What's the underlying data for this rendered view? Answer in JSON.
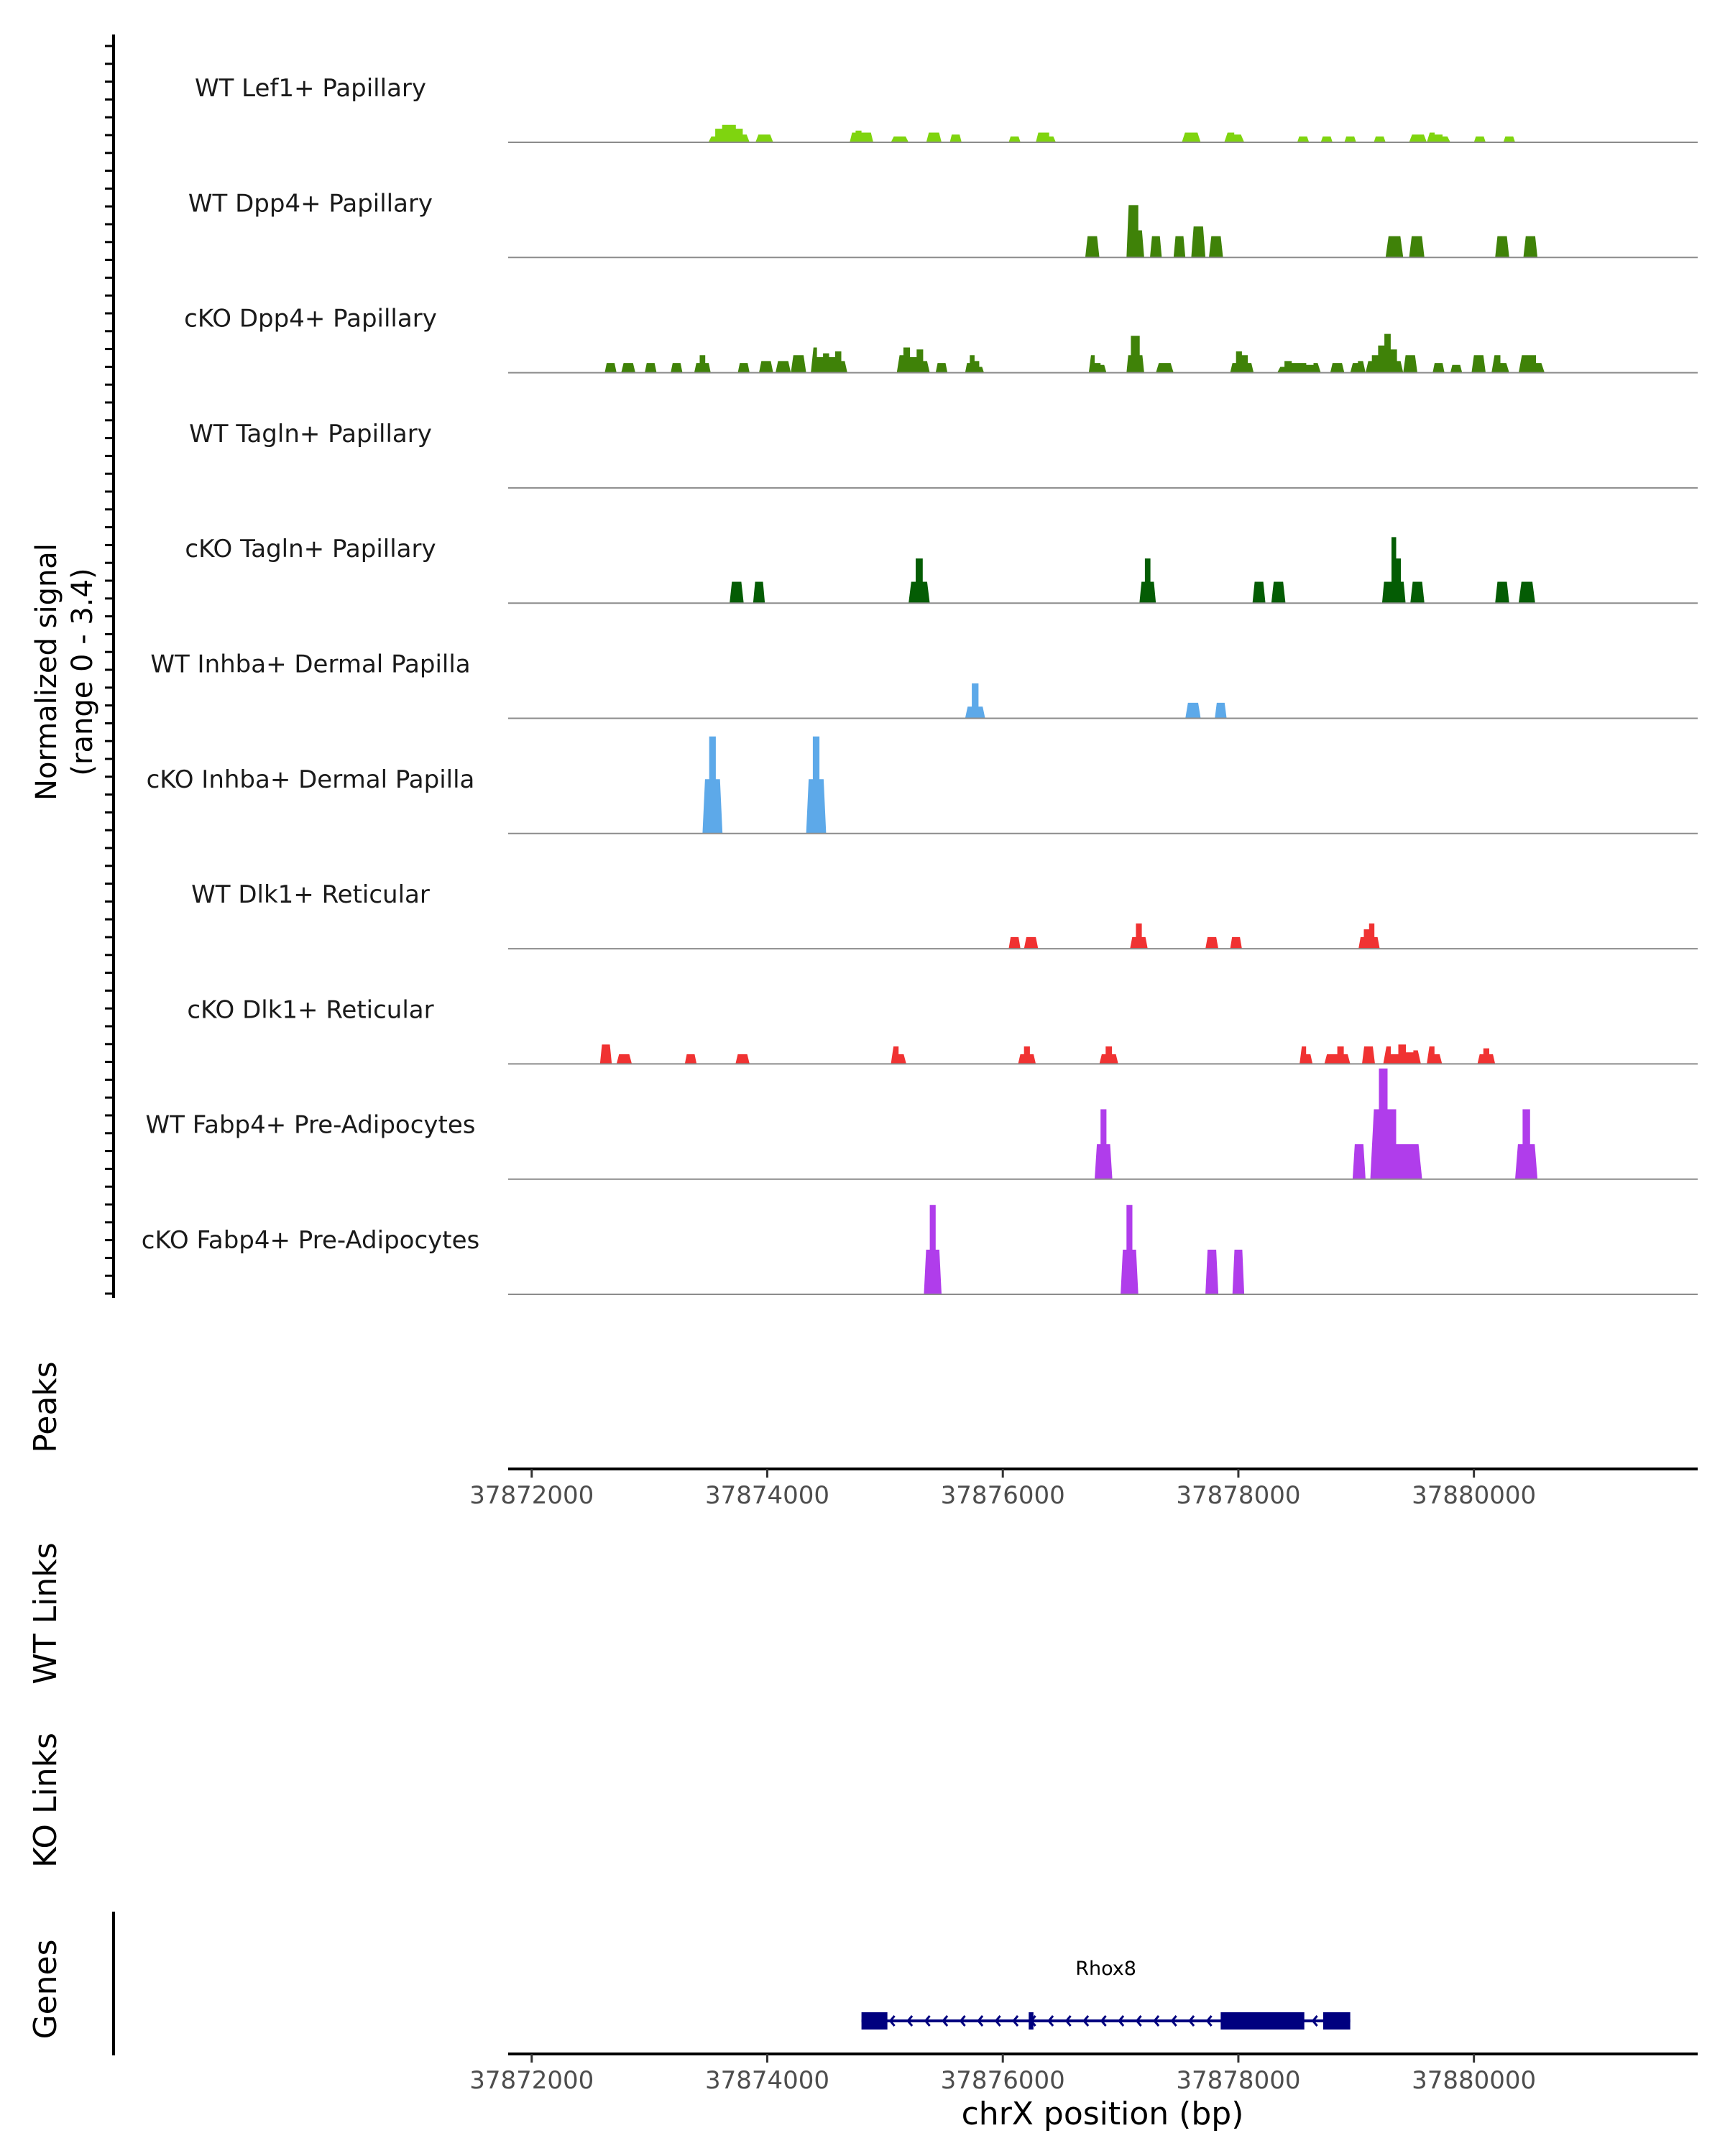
{
  "chart_data": {
    "type": "area",
    "title": "",
    "chromosome": "chrX",
    "xlabel": "chrX position (bp)",
    "xlim": [
      37871800,
      37881900
    ],
    "x_ticks": [
      "37872000",
      "37874000",
      "37876000",
      "37878000",
      "37880000"
    ],
    "x_tick_values": [
      37872000,
      37874000,
      37876000,
      37878000,
      37880000
    ],
    "ylabel": "Normalized signal",
    "ylabel_range": "(range 0 - 3.4)",
    "ylim": [
      0,
      3.4
    ],
    "peaks_label": "Peaks",
    "wt_links_label": "WT Links",
    "ko_links_label": "KO Links",
    "genes_label": "Genes",
    "colors": {
      "lef1": "#7FD40F",
      "papillary": "#3F8208",
      "tagln": "#045C04",
      "inhba": "#5DA9E9",
      "dlk1": "#F03232",
      "fabp4": "#B03DEB",
      "gene": "#00007F",
      "axis": "#000000",
      "baseline": "#8C8C8C"
    },
    "series": [
      {
        "name": "WT Lef1+ Papillary",
        "color": "#7FD40F",
        "peaks": [
          [
            37873500,
            37873850,
            [
              0.3,
              0.7,
              0.9,
              0.9,
              0.7,
              0.4
            ]
          ],
          [
            37873900,
            37874050,
            [
              0.4,
              0.4
            ]
          ],
          [
            37874700,
            37874900,
            [
              0.5,
              0.6,
              0.5,
              0.5
            ]
          ],
          [
            37875050,
            37875200,
            [
              0.3,
              0.3
            ]
          ],
          [
            37875350,
            37875480,
            [
              0.5,
              0.5
            ]
          ],
          [
            37875550,
            37875650,
            [
              0.4,
              0.4
            ]
          ],
          [
            37876050,
            37876150,
            [
              0.3,
              0.3
            ]
          ],
          [
            37876280,
            37876450,
            [
              0.5,
              0.5,
              0.3
            ]
          ],
          [
            37877520,
            37877680,
            [
              0.5,
              0.5
            ]
          ],
          [
            37877880,
            37878050,
            [
              0.5,
              0.4
            ]
          ],
          [
            37878500,
            37878600,
            [
              0.3,
              0.3
            ]
          ],
          [
            37878700,
            37878800,
            [
              0.3,
              0.3
            ]
          ],
          [
            37878900,
            37879000,
            [
              0.3,
              0.3
            ]
          ],
          [
            37879150,
            37879250,
            [
              0.3,
              0.3
            ]
          ],
          [
            37879450,
            37879600,
            [
              0.4,
              0.4
            ]
          ],
          [
            37879600,
            37879800,
            [
              0.5,
              0.4,
              0.3
            ]
          ],
          [
            37880000,
            37880100,
            [
              0.3,
              0.3
            ]
          ],
          [
            37880250,
            37880350,
            [
              0.3,
              0.3
            ]
          ]
        ]
      },
      {
        "name": "WT Dpp4+ Papillary",
        "color": "#3F8208",
        "peaks": [
          [
            37876700,
            37876820,
            [
              1.1,
              1.1
            ]
          ],
          [
            37877050,
            37877200,
            [
              2.7,
              2.7,
              1.4
            ]
          ],
          [
            37877250,
            37877350,
            [
              1.1,
              1.1
            ]
          ],
          [
            37877450,
            37877550,
            [
              1.1,
              1.1
            ]
          ],
          [
            37877600,
            37877720,
            [
              1.6,
              1.6
            ]
          ],
          [
            37877750,
            37877870,
            [
              1.1,
              1.1
            ]
          ],
          [
            37879250,
            37879400,
            [
              1.1,
              1.1
            ]
          ],
          [
            37879450,
            37879580,
            [
              1.1,
              1.1
            ]
          ],
          [
            37880180,
            37880300,
            [
              1.1,
              1.1
            ]
          ],
          [
            37880420,
            37880540,
            [
              1.1,
              1.1
            ]
          ]
        ]
      },
      {
        "name": "cKO Dpp4+ Papillary",
        "color": "#3F8208",
        "peaks": [
          [
            37872620,
            37872720,
            [
              0.5,
              0.5
            ]
          ],
          [
            37872760,
            37872880,
            [
              0.5,
              0.5
            ]
          ],
          [
            37872960,
            37873060,
            [
              0.5,
              0.5
            ]
          ],
          [
            37873180,
            37873280,
            [
              0.5,
              0.5
            ]
          ],
          [
            37873380,
            37873520,
            [
              0.5,
              0.9,
              0.5
            ]
          ],
          [
            37873750,
            37873850,
            [
              0.5,
              0.5
            ]
          ],
          [
            37873930,
            37874050,
            [
              0.6,
              0.6
            ]
          ],
          [
            37874070,
            37874200,
            [
              0.6,
              0.6
            ]
          ],
          [
            37874200,
            37874330,
            [
              0.9,
              0.9
            ]
          ],
          [
            37874370,
            37874680,
            [
              1.3,
              0.8,
              1.0,
              0.8,
              1.1,
              0.6
            ]
          ],
          [
            37875100,
            37875380,
            [
              0.9,
              1.3,
              0.8,
              1.2,
              0.6
            ]
          ],
          [
            37875430,
            37875530,
            [
              0.5,
              0.5
            ]
          ],
          [
            37875680,
            37875840,
            [
              0.5,
              0.9,
              0.6,
              0.3
            ]
          ],
          [
            37876730,
            37876880,
            [
              0.9,
              0.5,
              0.4
            ]
          ],
          [
            37877050,
            37877200,
            [
              0.9,
              1.9,
              1.9,
              0.9
            ]
          ],
          [
            37877300,
            37877450,
            [
              0.5,
              0.5
            ]
          ],
          [
            37877930,
            37878130,
            [
              0.5,
              1.1,
              0.9,
              0.5
            ]
          ],
          [
            37878330,
            37878700,
            [
              0.3,
              0.6,
              0.5,
              0.5,
              0.4,
              0.5
            ]
          ],
          [
            37878780,
            37878900,
            [
              0.5,
              0.5
            ]
          ],
          [
            37878950,
            37879080,
            [
              0.5,
              0.6
            ]
          ],
          [
            37879080,
            37879400,
            [
              0.6,
              0.9,
              1.4,
              2.0,
              1.2,
              0.6
            ]
          ],
          [
            37879400,
            37879520,
            [
              0.9,
              0.9
            ]
          ],
          [
            37879650,
            37879750,
            [
              0.5,
              0.5
            ]
          ],
          [
            37879800,
            37879900,
            [
              0.4,
              0.4
            ]
          ],
          [
            37879980,
            37880100,
            [
              0.9,
              0.9
            ]
          ],
          [
            37880150,
            37880300,
            [
              0.9,
              0.5
            ]
          ],
          [
            37880380,
            37880600,
            [
              0.9,
              0.9,
              0.5
            ]
          ]
        ]
      },
      {
        "name": "WT Tagln+ Papillary",
        "color": "#045C04",
        "peaks": []
      },
      {
        "name": "cKO Tagln+ Papillary",
        "color": "#045C04",
        "peaks": [
          [
            37873680,
            37873800,
            [
              1.1,
              1.1
            ]
          ],
          [
            37873880,
            37873980,
            [
              1.1,
              1.1
            ]
          ],
          [
            37875200,
            37875380,
            [
              1.1,
              2.3,
              1.1
            ]
          ],
          [
            37877160,
            37877300,
            [
              1.1,
              2.3,
              1.1
            ]
          ],
          [
            37878120,
            37878230,
            [
              1.1,
              1.1
            ]
          ],
          [
            37878280,
            37878400,
            [
              1.1,
              1.1
            ]
          ],
          [
            37879220,
            37879420,
            [
              1.1,
              1.1,
              3.4,
              2.3,
              1.1
            ]
          ],
          [
            37879460,
            37879580,
            [
              1.1,
              1.1
            ]
          ],
          [
            37880180,
            37880300,
            [
              1.1,
              1.1
            ]
          ],
          [
            37880380,
            37880520,
            [
              1.1,
              1.1
            ]
          ]
        ]
      },
      {
        "name": "WT Inhba+ Dermal Papilla",
        "color": "#5DA9E9",
        "peaks": [
          [
            37875680,
            37875850,
            [
              0.6,
              1.8,
              0.6
            ]
          ],
          [
            37877550,
            37877680,
            [
              0.8,
              0.8
            ]
          ],
          [
            37877800,
            37877900,
            [
              0.8,
              0.8
            ]
          ]
        ]
      },
      {
        "name": "cKO Inhba+ Dermal Papilla",
        "color": "#5DA9E9",
        "peaks": [
          [
            37873450,
            37873620,
            [
              2.8,
              5.0,
              2.8
            ]
          ],
          [
            37874330,
            37874500,
            [
              2.8,
              5.0,
              2.8
            ]
          ]
        ]
      },
      {
        "name": "WT Dlk1+ Reticular",
        "color": "#F03232",
        "peaks": [
          [
            37876050,
            37876150,
            [
              0.6,
              0.6
            ]
          ],
          [
            37876180,
            37876300,
            [
              0.6,
              0.6
            ]
          ],
          [
            37877080,
            37877230,
            [
              0.6,
              1.3,
              0.6
            ]
          ],
          [
            37877720,
            37877830,
            [
              0.6,
              0.6
            ]
          ],
          [
            37877930,
            37878030,
            [
              0.6,
              0.6
            ]
          ],
          [
            37879020,
            37879200,
            [
              0.6,
              1.0,
              1.3,
              0.6
            ]
          ]
        ]
      },
      {
        "name": "cKO Dlk1+ Reticular",
        "color": "#F03232",
        "peaks": [
          [
            37872580,
            37872680,
            [
              1.0,
              1.0
            ]
          ],
          [
            37872720,
            37872850,
            [
              0.5,
              0.5
            ]
          ],
          [
            37873300,
            37873400,
            [
              0.5,
              0.5
            ]
          ],
          [
            37873730,
            37873850,
            [
              0.5,
              0.5
            ]
          ],
          [
            37875050,
            37875180,
            [
              0.9,
              0.5
            ]
          ],
          [
            37876130,
            37876280,
            [
              0.5,
              0.9,
              0.5
            ]
          ],
          [
            37876820,
            37876980,
            [
              0.5,
              0.9,
              0.5
            ]
          ],
          [
            37878520,
            37878630,
            [
              0.9,
              0.5
            ]
          ],
          [
            37878730,
            37878950,
            [
              0.5,
              0.5,
              0.9,
              0.5
            ]
          ],
          [
            37879050,
            37879160,
            [
              0.9,
              0.9
            ]
          ],
          [
            37879230,
            37879550,
            [
              0.9,
              0.5,
              1.0,
              0.6,
              0.7
            ]
          ],
          [
            37879600,
            37879730,
            [
              0.9,
              0.5
            ]
          ],
          [
            37880030,
            37880180,
            [
              0.5,
              0.8,
              0.5
            ]
          ]
        ]
      },
      {
        "name": "WT Fabp4+ Pre-Adipocytes",
        "color": "#B03DEB",
        "peaks": [
          [
            37876780,
            37876930,
            [
              1.8,
              3.6,
              1.8
            ]
          ],
          [
            37878970,
            37879080,
            [
              1.8,
              1.8
            ]
          ],
          [
            37879120,
            37879560,
            [
              3.6,
              5.7,
              3.6,
              1.8,
              1.8,
              1.8
            ]
          ],
          [
            37880350,
            37880540,
            [
              1.8,
              3.6,
              1.8
            ]
          ]
        ]
      },
      {
        "name": "cKO Fabp4+ Pre-Adipocytes",
        "color": "#B03DEB",
        "peaks": [
          [
            37875330,
            37875480,
            [
              2.3,
              4.6,
              2.3
            ]
          ],
          [
            37877000,
            37877150,
            [
              2.3,
              4.6,
              2.3
            ]
          ],
          [
            37877720,
            37877830,
            [
              2.3,
              2.3
            ]
          ],
          [
            37877950,
            37878050,
            [
              2.3,
              2.3
            ]
          ]
        ]
      }
    ],
    "gene": {
      "name": "Rhox8",
      "strand": "-",
      "start": 37874800,
      "end": 37878950,
      "exons": [
        [
          37874800,
          37875020
        ],
        [
          37876220,
          37876260
        ],
        [
          37877850,
          37878560
        ],
        [
          37878720,
          37878950
        ]
      ]
    }
  }
}
